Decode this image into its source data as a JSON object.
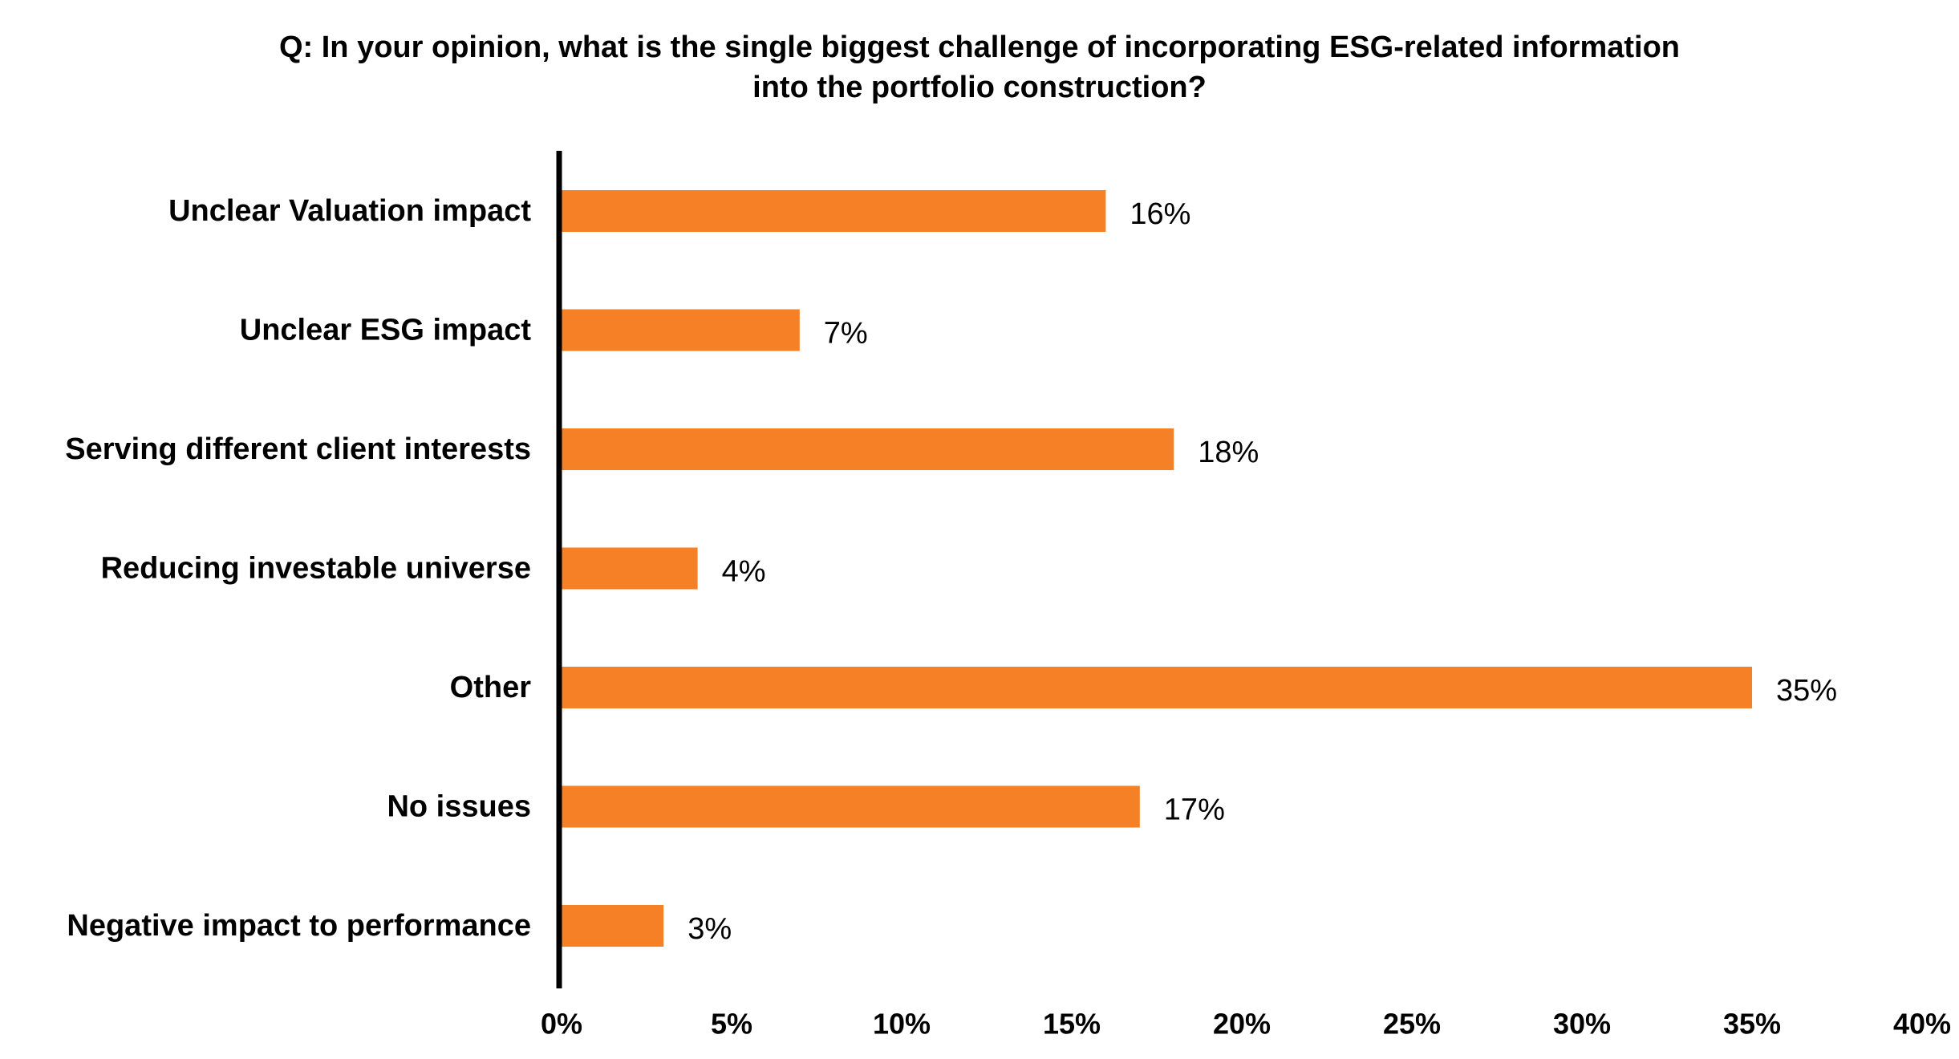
{
  "chart_data": {
    "type": "bar",
    "orientation": "horizontal",
    "title_lines": [
      "Q: In your opinion, what is the single biggest challenge of incorporating ESG-related information",
      "into the portfolio construction?"
    ],
    "categories": [
      "Unclear Valuation impact",
      "Unclear ESG impact",
      "Serving different client interests",
      "Reducing investable universe",
      "Other",
      "No issues",
      "Negative impact to performance"
    ],
    "values": [
      16,
      7,
      18,
      4,
      35,
      17,
      3
    ],
    "value_labels": [
      "16%",
      "7%",
      "18%",
      "4%",
      "35%",
      "17%",
      "3%"
    ],
    "xlim": [
      0,
      40
    ],
    "x_ticks": [
      0,
      5,
      10,
      15,
      20,
      25,
      30,
      35,
      40
    ],
    "x_tick_labels": [
      "0%",
      "5%",
      "10%",
      "15%",
      "20%",
      "25%",
      "30%",
      "35%",
      "40%"
    ],
    "xlabel": "",
    "ylabel": "",
    "grid": false,
    "legend": "none",
    "bar_color": "#F58025",
    "axis_color": "#000000"
  }
}
